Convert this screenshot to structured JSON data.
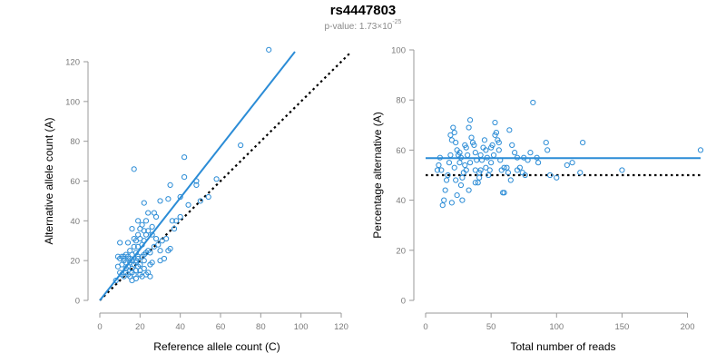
{
  "header": {
    "title": "rs4447803",
    "pvalue_prefix": "p-value: 1.73×10",
    "pvalue_exponent": "-25"
  },
  "colors": {
    "point": "#2b8cd6",
    "fit_line": "#2b8cd6",
    "reference_line": "#000000",
    "axis": "#9a9a9a",
    "tick_text": "#7a7a7a"
  },
  "chart_data": [
    {
      "type": "scatter",
      "xlabel": "Reference allele count (C)",
      "ylabel": "Alternative allele count (A)",
      "xlim": [
        0,
        120
      ],
      "ylim": [
        0,
        120
      ],
      "xticks": [
        0,
        20,
        40,
        60,
        80,
        100,
        120
      ],
      "yticks": [
        0,
        20,
        40,
        60,
        80,
        100,
        120
      ],
      "fit_line": {
        "x": [
          0,
          97
        ],
        "y": [
          0,
          125
        ]
      },
      "reference_line": {
        "x": [
          0,
          125
        ],
        "y": [
          0,
          125
        ],
        "style": "dotted"
      },
      "points": [
        [
          84,
          126
        ],
        [
          42,
          72
        ],
        [
          17,
          66
        ],
        [
          70,
          78
        ],
        [
          58,
          61
        ],
        [
          42,
          62
        ],
        [
          48,
          58
        ],
        [
          48,
          60
        ],
        [
          35,
          58
        ],
        [
          22,
          49
        ],
        [
          34,
          51
        ],
        [
          30,
          50
        ],
        [
          40,
          52
        ],
        [
          24,
          44
        ],
        [
          28,
          42
        ],
        [
          19,
          40
        ],
        [
          21,
          38
        ],
        [
          23,
          40
        ],
        [
          20,
          36
        ],
        [
          16,
          36
        ],
        [
          38,
          40
        ],
        [
          36,
          40
        ],
        [
          22,
          35
        ],
        [
          24,
          35
        ],
        [
          19,
          33
        ],
        [
          18,
          30
        ],
        [
          17,
          31
        ],
        [
          19,
          27
        ],
        [
          15,
          25
        ],
        [
          18,
          24
        ],
        [
          16,
          23
        ],
        [
          19,
          22
        ],
        [
          21,
          22
        ],
        [
          23,
          24
        ],
        [
          25,
          24
        ],
        [
          22,
          20
        ],
        [
          20,
          18
        ],
        [
          10,
          29
        ],
        [
          12,
          22
        ],
        [
          11,
          22
        ],
        [
          10,
          21
        ],
        [
          9,
          22
        ],
        [
          12,
          20
        ],
        [
          13,
          19
        ],
        [
          14,
          17
        ],
        [
          15,
          19
        ],
        [
          16,
          16
        ],
        [
          17,
          18
        ],
        [
          18,
          20
        ],
        [
          13,
          14
        ],
        [
          14,
          13
        ],
        [
          16,
          14
        ],
        [
          12,
          12
        ],
        [
          11,
          13
        ],
        [
          10,
          14
        ],
        [
          15,
          12
        ],
        [
          17,
          13
        ],
        [
          18,
          15
        ],
        [
          20,
          13
        ],
        [
          22,
          16
        ],
        [
          24,
          14
        ],
        [
          26,
          19
        ],
        [
          30,
          20
        ],
        [
          32,
          21
        ],
        [
          34,
          25
        ],
        [
          35,
          26
        ],
        [
          31,
          30
        ],
        [
          28,
          31
        ],
        [
          26,
          33
        ],
        [
          22,
          30
        ],
        [
          20,
          31
        ],
        [
          19,
          21
        ],
        [
          13,
          23
        ],
        [
          8,
          10
        ],
        [
          16,
          10
        ],
        [
          18,
          11
        ],
        [
          21,
          12
        ],
        [
          23,
          13
        ],
        [
          25,
          18
        ],
        [
          27,
          27
        ],
        [
          29,
          28
        ],
        [
          33,
          31
        ],
        [
          37,
          36
        ],
        [
          40,
          42
        ],
        [
          44,
          48
        ],
        [
          50,
          50
        ],
        [
          54,
          52
        ],
        [
          14,
          29
        ],
        [
          17,
          27
        ],
        [
          26,
          37
        ],
        [
          12,
          21
        ],
        [
          15,
          21
        ],
        [
          20,
          15
        ],
        [
          25,
          12
        ],
        [
          13,
          16
        ],
        [
          9,
          17
        ],
        [
          11,
          18
        ],
        [
          14,
          22
        ],
        [
          18,
          19
        ],
        [
          21,
          28
        ],
        [
          23,
          33
        ],
        [
          27,
          44
        ],
        [
          30,
          25
        ],
        [
          24,
          25
        ],
        [
          22,
          23
        ],
        [
          16,
          20
        ],
        [
          19,
          17
        ]
      ]
    },
    {
      "type": "scatter",
      "xlabel": "Total number of reads",
      "ylabel": "Percentage alternative (A)",
      "xlim": [
        0,
        210
      ],
      "ylim": [
        0,
        100
      ],
      "xticks": [
        0,
        50,
        100,
        150,
        200
      ],
      "yticks": [
        0,
        20,
        40,
        60,
        80,
        100
      ],
      "fit_line": {
        "x": [
          0,
          210
        ],
        "y": [
          56.8,
          56.8
        ]
      },
      "reference_line": {
        "x": [
          0,
          210
        ],
        "y": [
          50,
          50
        ],
        "style": "dotted"
      },
      "points": [
        [
          210,
          60
        ],
        [
          150,
          52
        ],
        [
          120,
          63
        ],
        [
          118,
          51
        ],
        [
          112,
          55
        ],
        [
          108,
          54
        ],
        [
          100,
          49
        ],
        [
          95,
          50
        ],
        [
          93,
          60
        ],
        [
          92,
          63
        ],
        [
          86,
          55
        ],
        [
          85,
          57
        ],
        [
          82,
          79
        ],
        [
          80,
          59
        ],
        [
          78,
          56
        ],
        [
          76,
          50
        ],
        [
          74,
          51
        ],
        [
          72,
          53
        ],
        [
          70,
          57
        ],
        [
          68,
          59
        ],
        [
          66,
          62
        ],
        [
          64,
          68
        ],
        [
          63,
          51
        ],
        [
          62,
          53
        ],
        [
          60,
          43
        ],
        [
          59,
          43
        ],
        [
          58,
          52
        ],
        [
          57,
          56
        ],
        [
          56,
          60
        ],
        [
          55,
          64
        ],
        [
          54,
          67
        ],
        [
          53,
          71
        ],
        [
          52,
          58
        ],
        [
          51,
          62
        ],
        [
          50,
          55
        ],
        [
          49,
          52
        ],
        [
          48,
          50
        ],
        [
          47,
          57
        ],
        [
          46,
          60
        ],
        [
          45,
          64
        ],
        [
          44,
          61
        ],
        [
          43,
          56
        ],
        [
          42,
          52
        ],
        [
          41,
          49
        ],
        [
          40,
          47
        ],
        [
          39,
          56
        ],
        [
          38,
          59
        ],
        [
          37,
          62
        ],
        [
          36,
          63
        ],
        [
          35,
          65
        ],
        [
          34,
          72
        ],
        [
          33,
          69
        ],
        [
          32,
          58
        ],
        [
          31,
          61
        ],
        [
          30,
          54
        ],
        [
          29,
          51
        ],
        [
          28,
          49
        ],
        [
          27,
          46
        ],
        [
          26,
          55
        ],
        [
          25,
          58
        ],
        [
          24,
          60
        ],
        [
          23,
          63
        ],
        [
          22,
          67
        ],
        [
          21,
          69
        ],
        [
          20,
          64
        ],
        [
          19,
          58
        ],
        [
          18,
          55
        ],
        [
          17,
          50
        ],
        [
          16,
          48
        ],
        [
          15,
          44
        ],
        [
          14,
          40
        ],
        [
          13,
          38
        ],
        [
          12,
          52
        ],
        [
          11,
          57
        ],
        [
          10,
          54
        ],
        [
          9,
          52
        ],
        [
          20,
          39
        ],
        [
          24,
          42
        ],
        [
          28,
          40
        ],
        [
          33,
          44
        ],
        [
          38,
          47
        ],
        [
          41,
          51
        ],
        [
          46,
          53
        ],
        [
          50,
          61
        ],
        [
          53,
          66
        ],
        [
          56,
          63
        ],
        [
          60,
          53
        ],
        [
          65,
          48
        ],
        [
          70,
          52
        ],
        [
          75,
          57
        ],
        [
          22,
          53
        ],
        [
          26,
          59
        ],
        [
          30,
          62
        ],
        [
          34,
          55
        ],
        [
          38,
          52
        ],
        [
          42,
          58
        ],
        [
          19,
          66
        ],
        [
          23,
          48
        ],
        [
          27,
          57
        ],
        [
          31,
          52
        ]
      ]
    }
  ]
}
